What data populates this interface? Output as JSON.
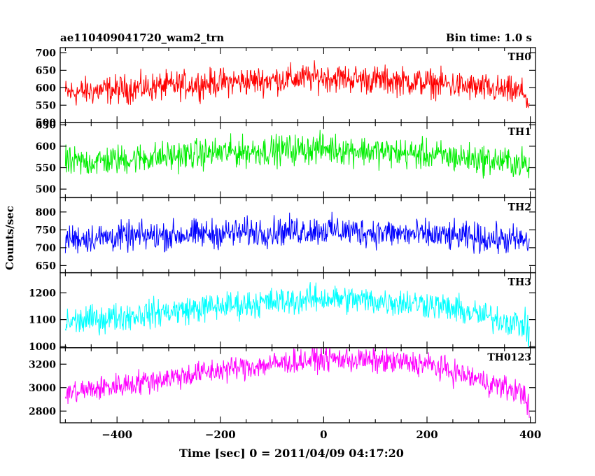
{
  "header": {
    "title": "ae110409041720_wam2_trn",
    "bin_time": "Bin time: 1.0 s"
  },
  "axes": {
    "ylabel": "Counts/sec",
    "xlabel": "Time [sec] 0 = 2011/04/09 04:17:20"
  },
  "chart_data": {
    "type": "line",
    "x_range": [
      -510,
      410
    ],
    "x_step": 1,
    "x_ticks": [
      -400,
      -200,
      0,
      200,
      400
    ],
    "panels": [
      {
        "name": "TH0",
        "color": "#ff0000",
        "ylim": [
          500,
          715
        ],
        "yticks": [
          500,
          550,
          600,
          650,
          700
        ],
        "profile": [
          [
            -500,
            585
          ],
          [
            -200,
            615
          ],
          [
            0,
            630
          ],
          [
            200,
            615
          ],
          [
            390,
            585
          ],
          [
            398,
            540
          ]
        ],
        "noise": 35
      },
      {
        "name": "TH1",
        "color": "#00ee00",
        "ylim": [
          480,
          655
        ],
        "yticks": [
          500,
          550,
          600,
          650
        ],
        "profile": [
          [
            -500,
            560
          ],
          [
            -200,
            585
          ],
          [
            0,
            595
          ],
          [
            200,
            580
          ],
          [
            390,
            560
          ],
          [
            398,
            535
          ]
        ],
        "noise": 30
      },
      {
        "name": "TH2",
        "color": "#0000ff",
        "ylim": [
          630,
          840
        ],
        "yticks": [
          650,
          700,
          750,
          800
        ],
        "profile": [
          [
            -500,
            725
          ],
          [
            -200,
            740
          ],
          [
            0,
            750
          ],
          [
            200,
            735
          ],
          [
            390,
            720
          ],
          [
            398,
            700
          ]
        ],
        "noise": 35
      },
      {
        "name": "TH3",
        "color": "#00ffff",
        "ylim": [
          995,
          1275
        ],
        "yticks": [
          1000,
          1100,
          1200
        ],
        "profile": [
          [
            -500,
            1090
          ],
          [
            -200,
            1150
          ],
          [
            0,
            1180
          ],
          [
            200,
            1160
          ],
          [
            390,
            1080
          ],
          [
            398,
            1030
          ]
        ],
        "noise": 45
      },
      {
        "name": "TH0123",
        "color": "#ff00ff",
        "ylim": [
          2700,
          3340
        ],
        "yticks": [
          2800,
          3000,
          3200
        ],
        "profile": [
          [
            -500,
            2950
          ],
          [
            -200,
            3150
          ],
          [
            0,
            3250
          ],
          [
            200,
            3200
          ],
          [
            390,
            2950
          ],
          [
            398,
            2800
          ]
        ],
        "noise": 90
      }
    ]
  }
}
